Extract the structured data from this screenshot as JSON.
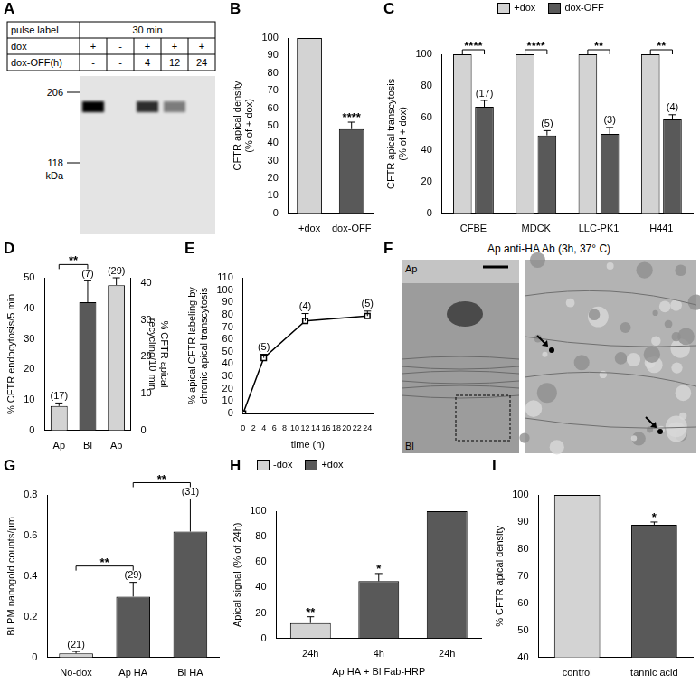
{
  "chart_data": [
    {
      "panel": "B",
      "type": "bar",
      "categories": [
        "+dox",
        "dox-OFF"
      ],
      "y_label": "CFTR apical density (% of + dox)",
      "ylim": [
        0,
        100
      ],
      "yticks": [
        0,
        10,
        20,
        30,
        40,
        50,
        60,
        70,
        80,
        90,
        100
      ],
      "grid": false,
      "series": [
        {
          "values": [
            100,
            48
          ],
          "errors": [
            null,
            4
          ],
          "colors": [
            "#d3d3d3",
            "#595959"
          ],
          "significance": [
            null,
            "****"
          ]
        }
      ]
    },
    {
      "panel": "C",
      "type": "bar",
      "categories": [
        "CFBE",
        "MDCK",
        "LLC-PK1",
        "H441"
      ],
      "y_label": "CFTR apical transcytosis (% of + dox)",
      "ylim": [
        0,
        100
      ],
      "yticks": [
        0,
        20,
        40,
        60,
        80,
        100
      ],
      "grid": false,
      "legend": "top",
      "series": [
        {
          "name": "+dox",
          "color": "#d3d3d3",
          "values": [
            100,
            100,
            100,
            100
          ]
        },
        {
          "name": "dox-OFF",
          "color": "#595959",
          "values": [
            67,
            49,
            50,
            59
          ],
          "errors": [
            4,
            3,
            4,
            3
          ],
          "n_labels": [
            "(17)",
            "(5)",
            "(3)",
            "(4)"
          ]
        }
      ],
      "significance": [
        {
          "category": "CFBE",
          "label": "****"
        },
        {
          "category": "MDCK",
          "label": "****"
        },
        {
          "category": "LLC-PK1",
          "label": "**"
        },
        {
          "category": "H441",
          "label": "**"
        }
      ]
    },
    {
      "panel": "D",
      "type": "bar",
      "categories": [
        "Ap",
        "Bl",
        "Ap"
      ],
      "y_label": "% CFTR endocytosis/5 min",
      "y2_label": "% CFTR apical recycling/10 min",
      "ylim": [
        0,
        50
      ],
      "yticks": [
        0,
        10,
        20,
        30,
        40,
        50
      ],
      "y2lim": [
        0,
        41.5
      ],
      "y2ticks": [
        0,
        10,
        20,
        30,
        40
      ],
      "grid": false,
      "series": [
        {
          "values": [
            8,
            42,
            null
          ],
          "errors": [
            1,
            7,
            null
          ],
          "colors": [
            "#d3d3d3",
            "#595959",
            null
          ],
          "n_labels": [
            "(17)",
            "(7)",
            null
          ]
        },
        {
          "axis": "y2",
          "values": [
            null,
            null,
            39.5
          ],
          "errors": [
            null,
            null,
            2
          ],
          "colors": [
            null,
            null,
            "#d3d3d3"
          ],
          "n_labels": [
            null,
            null,
            "(29)"
          ]
        }
      ],
      "significance": [
        {
          "between": [
            "Ap",
            "Bl"
          ],
          "label": "**"
        }
      ]
    },
    {
      "panel": "E",
      "type": "line",
      "x": [
        0,
        4,
        12,
        24
      ],
      "values": [
        0,
        45,
        75,
        79
      ],
      "errors": [
        null,
        3,
        6,
        4
      ],
      "n_labels": [
        null,
        "(5)",
        "(4)",
        "(5)"
      ],
      "x_label": "time (h)",
      "y_label": "% apical CFTR labeling by chronic apical transcytosis",
      "xlim": [
        0,
        25
      ],
      "xticks": [
        0,
        2,
        4,
        6,
        8,
        10,
        12,
        14,
        16,
        18,
        20,
        22,
        24
      ],
      "ylim": [
        0,
        110
      ],
      "yticks": [
        0,
        10,
        20,
        30,
        40,
        50,
        60,
        70,
        80,
        90,
        100,
        110
      ],
      "marker": "square",
      "color": "#000000",
      "grid": false
    },
    {
      "panel": "G",
      "type": "bar",
      "categories": [
        "No-dox",
        "Ap HA",
        "Bl HA"
      ],
      "y_label": "Bl PM nanogold counts/μm",
      "ylim": [
        0,
        0.8
      ],
      "yticks": [
        0,
        0.2,
        0.4,
        0.6,
        0.8
      ],
      "grid": false,
      "series": [
        {
          "values": [
            0.02,
            0.3,
            0.62
          ],
          "errors": [
            0.01,
            0.07,
            0.16
          ],
          "colors": [
            "#d3d3d3",
            "#595959",
            "#595959"
          ],
          "n_labels": [
            "(21)",
            "(29)",
            "(31)"
          ]
        }
      ],
      "significance": [
        {
          "between": [
            "No-dox",
            "Ap HA"
          ],
          "label": "**"
        },
        {
          "between": [
            "Ap HA",
            "Bl HA"
          ],
          "label": "**"
        }
      ]
    },
    {
      "panel": "H",
      "type": "bar",
      "categories": [
        "24h",
        "4h",
        "24h"
      ],
      "x_label": "Ap HA + Bl Fab-HRP",
      "y_label": "Apical signal (% of 24h)",
      "ylim": [
        0,
        100
      ],
      "yticks": [
        0,
        20,
        40,
        60,
        80,
        100
      ],
      "grid": false,
      "legend": "top-left",
      "series": [
        {
          "name": "-dox",
          "color": "#d3d3d3",
          "values": [
            12,
            null,
            null
          ],
          "errors": [
            5,
            null,
            null
          ],
          "significance": [
            "**",
            null,
            null
          ]
        },
        {
          "name": "+dox",
          "color": "#595959",
          "values": [
            null,
            45,
            100
          ],
          "errors": [
            null,
            6,
            null
          ],
          "significance": [
            null,
            "*",
            null
          ]
        }
      ]
    },
    {
      "panel": "I",
      "type": "bar",
      "categories": [
        "control",
        "tannic acid"
      ],
      "y_label": "% CFTR apical density",
      "ylim": [
        40,
        100
      ],
      "yticks": [
        40,
        50,
        60,
        70,
        80,
        90,
        100
      ],
      "grid": false,
      "series": [
        {
          "values": [
            100,
            89
          ],
          "errors": [
            null,
            1
          ],
          "colors": [
            "#d3d3d3",
            "#595959"
          ],
          "significance": [
            null,
            "*"
          ]
        }
      ]
    }
  ],
  "blot": {
    "panel": "A",
    "table": [
      [
        "pulse label",
        "30 min"
      ],
      [
        "dox",
        "+",
        "-",
        "+",
        "+",
        "+"
      ],
      [
        "dox-OFF(h)",
        "-",
        "-",
        "4",
        "12",
        "24"
      ]
    ],
    "markers": [
      206,
      118
    ],
    "marker_unit": "kDa"
  },
  "micrograph": {
    "panel": "F",
    "title": "Ap anti-HA Ab (3h, 37° C)",
    "labels": [
      "Ap",
      "Bl"
    ]
  }
}
